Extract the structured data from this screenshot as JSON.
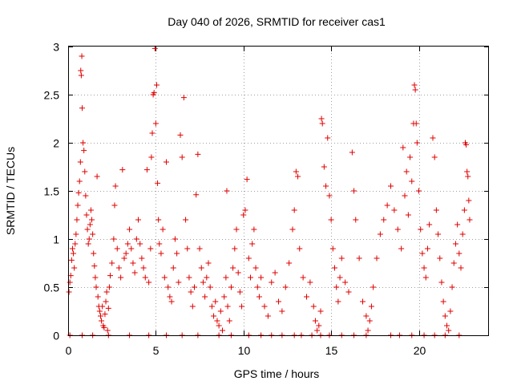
{
  "chart_data": {
    "type": "scatter",
    "title": "Day 040 of 2026, SRMTID for receiver cas1",
    "xlabel": "GPS time / hours",
    "ylabel": "SRMTID / TECUs",
    "xlim": [
      0,
      24
    ],
    "ylim": [
      0,
      3
    ],
    "xticks": [
      0,
      5,
      10,
      15,
      20
    ],
    "xtick_labels": [
      "0",
      "5",
      "10",
      "15",
      "20"
    ],
    "yticks": [
      0,
      0.5,
      1,
      1.5,
      2,
      2.5,
      3
    ],
    "ytick_labels": [
      "0",
      "0.5",
      "1",
      "1.5",
      "2",
      "2.5",
      "3"
    ],
    "grid": true,
    "marker": "+",
    "color": "#e00000",
    "series": [
      {
        "name": "SRMTID",
        "points": [
          [
            0.05,
            0.45
          ],
          [
            0.1,
            0.55
          ],
          [
            0.15,
            0.62
          ],
          [
            0.2,
            0.78
          ],
          [
            0.25,
            0.9
          ],
          [
            0.3,
            0.85
          ],
          [
            0.35,
            0.7
          ],
          [
            0.4,
            0.95
          ],
          [
            0.45,
            1.05
          ],
          [
            0.5,
            1.2
          ],
          [
            0.55,
            1.35
          ],
          [
            0.6,
            1.48
          ],
          [
            0.65,
            1.6
          ],
          [
            0.7,
            1.8
          ],
          [
            0.72,
            2.75
          ],
          [
            0.75,
            2.7
          ],
          [
            0.78,
            2.9
          ],
          [
            0.8,
            2.36
          ],
          [
            0.85,
            2.0
          ],
          [
            0.9,
            1.92
          ],
          [
            0.95,
            1.7
          ],
          [
            1.0,
            1.45
          ],
          [
            1.05,
            1.25
          ],
          [
            1.1,
            1.1
          ],
          [
            1.15,
            0.95
          ],
          [
            1.2,
            1.0
          ],
          [
            1.25,
            1.15
          ],
          [
            1.3,
            1.3
          ],
          [
            1.35,
            1.2
          ],
          [
            1.4,
            1.05
          ],
          [
            1.45,
            0.85
          ],
          [
            1.5,
            0.72
          ],
          [
            1.55,
            0.6
          ],
          [
            1.6,
            0.5
          ],
          [
            1.65,
            1.65
          ],
          [
            1.7,
            0.4
          ],
          [
            1.75,
            0.3
          ],
          [
            1.8,
            0.25
          ],
          [
            1.85,
            0.2
          ],
          [
            1.9,
            0.15
          ],
          [
            1.95,
            0.3
          ],
          [
            2.0,
            0.1
          ],
          [
            2.05,
            0.08
          ],
          [
            2.1,
            0.22
          ],
          [
            2.15,
            0.35
          ],
          [
            2.2,
            0.45
          ],
          [
            2.25,
            0.05
          ],
          [
            2.3,
            0.28
          ],
          [
            2.35,
            0.5
          ],
          [
            2.4,
            0.62
          ],
          [
            2.5,
            0.75
          ],
          [
            2.6,
            1.0
          ],
          [
            2.65,
            1.35
          ],
          [
            2.7,
            1.55
          ],
          [
            2.8,
            0.9
          ],
          [
            2.9,
            0.7
          ],
          [
            3.0,
            0.6
          ],
          [
            3.1,
            1.72
          ],
          [
            3.2,
            0.8
          ],
          [
            3.3,
            0.85
          ],
          [
            3.4,
            0.95
          ],
          [
            3.5,
            1.1
          ],
          [
            3.6,
            0.9
          ],
          [
            3.7,
            0.75
          ],
          [
            3.8,
            0.65
          ],
          [
            3.9,
            1.0
          ],
          [
            4.0,
            1.2
          ],
          [
            4.1,
            0.95
          ],
          [
            4.2,
            0.8
          ],
          [
            4.3,
            0.7
          ],
          [
            4.4,
            0.6
          ],
          [
            4.5,
            1.72
          ],
          [
            4.6,
            0.55
          ],
          [
            4.7,
            0.9
          ],
          [
            4.75,
            1.85
          ],
          [
            4.8,
            2.1
          ],
          [
            4.85,
            2.5
          ],
          [
            4.9,
            2.52
          ],
          [
            4.95,
            2.98
          ],
          [
            5.0,
            2.2
          ],
          [
            5.05,
            2.6
          ],
          [
            5.1,
            1.58
          ],
          [
            5.15,
            1.2
          ],
          [
            5.2,
            0.95
          ],
          [
            5.3,
            0.85
          ],
          [
            5.4,
            1.1
          ],
          [
            5.5,
            0.6
          ],
          [
            5.6,
            1.8
          ],
          [
            5.7,
            0.5
          ],
          [
            5.8,
            0.4
          ],
          [
            5.9,
            0.35
          ],
          [
            6.0,
            0.7
          ],
          [
            6.1,
            1.0
          ],
          [
            6.2,
            0.85
          ],
          [
            6.3,
            0.55
          ],
          [
            6.4,
            2.08
          ],
          [
            6.5,
            1.85
          ],
          [
            6.6,
            2.47
          ],
          [
            6.7,
            1.2
          ],
          [
            6.8,
            0.9
          ],
          [
            6.9,
            0.6
          ],
          [
            7.0,
            0.45
          ],
          [
            7.1,
            0.3
          ],
          [
            7.2,
            0.5
          ],
          [
            7.3,
            1.46
          ],
          [
            7.4,
            1.88
          ],
          [
            7.5,
            0.9
          ],
          [
            7.6,
            0.7
          ],
          [
            7.7,
            0.55
          ],
          [
            7.8,
            0.4
          ],
          [
            7.9,
            0.6
          ],
          [
            8.0,
            0.75
          ],
          [
            8.1,
            0.5
          ],
          [
            8.2,
            0.3
          ],
          [
            8.3,
            0.2
          ],
          [
            8.4,
            0.35
          ],
          [
            8.5,
            0.15
          ],
          [
            8.6,
            0.1
          ],
          [
            8.7,
            0.25
          ],
          [
            8.8,
            0.05
          ],
          [
            8.9,
            0.4
          ],
          [
            9.0,
            0.6
          ],
          [
            9.05,
            1.5
          ],
          [
            9.1,
            0.3
          ],
          [
            9.2,
            0.15
          ],
          [
            9.3,
            0.5
          ],
          [
            9.4,
            0.7
          ],
          [
            9.5,
            0.9
          ],
          [
            9.6,
            1.1
          ],
          [
            9.7,
            0.65
          ],
          [
            9.8,
            0.45
          ],
          [
            9.9,
            0.3
          ],
          [
            10.0,
            1.25
          ],
          [
            10.1,
            1.3
          ],
          [
            10.2,
            1.62
          ],
          [
            10.3,
            0.8
          ],
          [
            10.4,
            0.6
          ],
          [
            10.5,
            0.95
          ],
          [
            10.6,
            1.1
          ],
          [
            10.7,
            0.7
          ],
          [
            10.8,
            0.5
          ],
          [
            10.9,
            0.4
          ],
          [
            11.0,
            0.6
          ],
          [
            11.2,
            0.3
          ],
          [
            11.4,
            0.2
          ],
          [
            11.6,
            0.55
          ],
          [
            11.8,
            0.65
          ],
          [
            12.0,
            0.35
          ],
          [
            12.2,
            0.25
          ],
          [
            12.4,
            0.5
          ],
          [
            12.6,
            0.75
          ],
          [
            12.8,
            1.1
          ],
          [
            12.9,
            1.3
          ],
          [
            13.0,
            1.7
          ],
          [
            13.1,
            1.65
          ],
          [
            13.2,
            0.9
          ],
          [
            13.4,
            0.6
          ],
          [
            13.6,
            0.4
          ],
          [
            13.8,
            0.55
          ],
          [
            14.0,
            0.3
          ],
          [
            14.1,
            0.15
          ],
          [
            14.2,
            0.05
          ],
          [
            14.3,
            0.1
          ],
          [
            14.4,
            0.25
          ],
          [
            14.45,
            2.25
          ],
          [
            14.5,
            2.2
          ],
          [
            14.6,
            1.75
          ],
          [
            14.7,
            1.55
          ],
          [
            14.8,
            2.05
          ],
          [
            14.9,
            1.45
          ],
          [
            15.0,
            1.2
          ],
          [
            15.1,
            0.9
          ],
          [
            15.2,
            0.7
          ],
          [
            15.3,
            0.5
          ],
          [
            15.4,
            0.35
          ],
          [
            15.5,
            0.6
          ],
          [
            15.6,
            0.8
          ],
          [
            15.8,
            0.55
          ],
          [
            16.0,
            0.45
          ],
          [
            16.2,
            1.9
          ],
          [
            16.3,
            1.5
          ],
          [
            16.4,
            1.2
          ],
          [
            16.6,
            0.8
          ],
          [
            16.8,
            0.35
          ],
          [
            17.0,
            0.2
          ],
          [
            17.1,
            0.05
          ],
          [
            17.2,
            0.15
          ],
          [
            17.3,
            0.3
          ],
          [
            17.4,
            0.5
          ],
          [
            17.6,
            0.8
          ],
          [
            17.8,
            1.05
          ],
          [
            18.0,
            1.2
          ],
          [
            18.2,
            1.35
          ],
          [
            18.4,
            1.55
          ],
          [
            18.6,
            1.3
          ],
          [
            18.8,
            1.1
          ],
          [
            19.0,
            0.9
          ],
          [
            19.1,
            1.95
          ],
          [
            19.2,
            1.45
          ],
          [
            19.3,
            1.7
          ],
          [
            19.4,
            1.25
          ],
          [
            19.5,
            1.85
          ],
          [
            19.6,
            1.6
          ],
          [
            19.7,
            2.2
          ],
          [
            19.75,
            2.6
          ],
          [
            19.8,
            2.55
          ],
          [
            19.85,
            2.2
          ],
          [
            19.9,
            2.0
          ],
          [
            20.0,
            1.5
          ],
          [
            20.1,
            1.1
          ],
          [
            20.2,
            0.85
          ],
          [
            20.3,
            0.7
          ],
          [
            20.4,
            0.6
          ],
          [
            20.5,
            0.9
          ],
          [
            20.6,
            1.15
          ],
          [
            20.8,
            2.05
          ],
          [
            20.9,
            1.85
          ],
          [
            21.0,
            1.3
          ],
          [
            21.1,
            1.05
          ],
          [
            21.2,
            0.8
          ],
          [
            21.3,
            0.55
          ],
          [
            21.4,
            0.35
          ],
          [
            21.5,
            0.2
          ],
          [
            21.6,
            0.1
          ],
          [
            21.7,
            0.05
          ],
          [
            21.8,
            0.25
          ],
          [
            21.9,
            0.5
          ],
          [
            22.0,
            0.75
          ],
          [
            22.1,
            0.95
          ],
          [
            22.2,
            1.15
          ],
          [
            22.3,
            0.85
          ],
          [
            22.4,
            0.7
          ],
          [
            22.5,
            1.05
          ],
          [
            22.6,
            1.3
          ],
          [
            22.65,
            2.0
          ],
          [
            22.7,
            1.98
          ],
          [
            22.75,
            1.7
          ],
          [
            22.8,
            1.65
          ],
          [
            22.85,
            1.4
          ],
          [
            22.9,
            1.2
          ]
        ]
      }
    ],
    "zero_points_x": [
      0.1,
      0.8,
      1.4,
      2.3,
      3.5,
      4.6,
      5.6,
      6.5,
      7.4,
      8.6,
      9.3,
      10.3,
      11.0,
      11.6,
      12.2,
      12.9,
      13.3,
      13.9,
      14.4,
      14.9,
      15.6,
      16.3,
      17.0,
      18.4,
      18.9,
      19.6,
      20.3,
      20.9,
      21.5,
      22.3
    ]
  }
}
